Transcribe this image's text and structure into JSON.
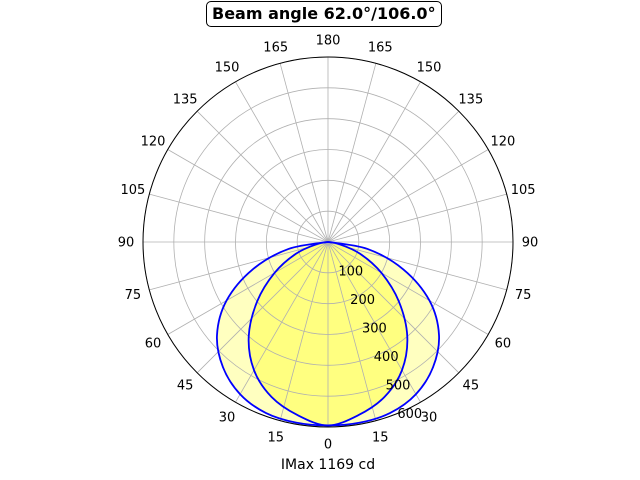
{
  "chart_data": {
    "type": "polar",
    "title": "Beam angle 62.0°/106.0°",
    "xlabel": "IMax 1169 cd",
    "angle_ticks": [
      "0",
      "15",
      "30",
      "45",
      "60",
      "75",
      "90",
      "105",
      "120",
      "135",
      "150",
      "165",
      "180",
      "165",
      "150",
      "135",
      "120",
      "105",
      "90",
      "75",
      "60",
      "45",
      "30",
      "15"
    ],
    "angle_tick_degrees": [
      0,
      15,
      30,
      45,
      60,
      75,
      90,
      105,
      120,
      135,
      150,
      165,
      180,
      195,
      210,
      225,
      240,
      255,
      270,
      285,
      300,
      315,
      330,
      345
    ],
    "radial_ticks": [
      "100",
      "200",
      "300",
      "400",
      "500",
      "600"
    ],
    "radial_tick_values": [
      100,
      200,
      300,
      400,
      500,
      600
    ],
    "rlim": [
      0,
      600
    ],
    "grid": true,
    "series": [
      {
        "color": "#0000ff",
        "fill": "#ffff80",
        "angles": [
          0,
          10,
          20,
          30,
          40,
          50,
          60,
          70,
          80,
          90
        ],
        "values": [
          595,
          570,
          535,
          480,
          400,
          300,
          200,
          110,
          35,
          0
        ]
      },
      {
        "color": "#0000ff",
        "fill": "#ffffc0",
        "angles": [
          0,
          10,
          20,
          30,
          40,
          50,
          60,
          70,
          80,
          90
        ],
        "values": [
          595,
          595,
          590,
          570,
          530,
          470,
          380,
          260,
          130,
          0
        ]
      }
    ]
  }
}
